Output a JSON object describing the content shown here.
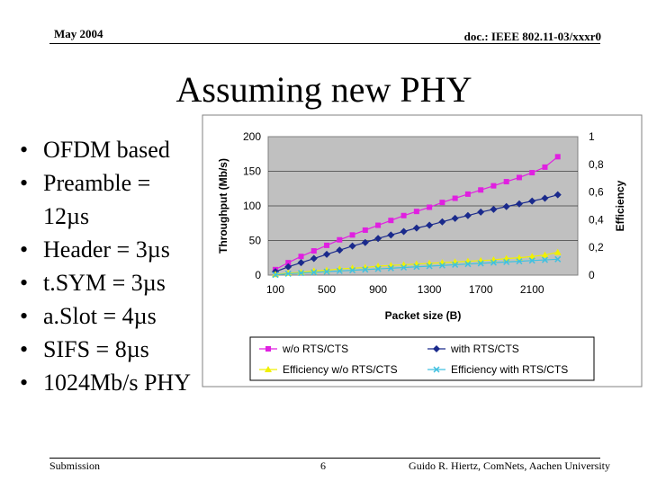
{
  "header": {
    "date": "May 2004",
    "doc": "doc.: IEEE 802.11-03/xxxr0"
  },
  "title": "Assuming new PHY",
  "bullets": [
    {
      "line1": "OFDM based",
      "line2": ""
    },
    {
      "line1": "Preamble =",
      "line2": "12µs"
    },
    {
      "line1": "Header = 3µs",
      "line2": ""
    },
    {
      "line1": "t.SYM = 3µs",
      "line2": ""
    },
    {
      "line1": "a.Slot = 4µs",
      "line2": ""
    },
    {
      "line1": "SIFS = 8µs",
      "line2": ""
    },
    {
      "line1": "1024Mb/s PHY",
      "line2": ""
    }
  ],
  "footer": {
    "left": "Submission",
    "page": "6",
    "right": "Guido R. Hiertz, ComNets, Aachen University"
  },
  "chart_data": {
    "type": "line",
    "xlabel": "Packet size (B)",
    "ylabel": "Throughput (Mb/s)",
    "y2label": "Efficiency",
    "xlim": [
      100,
      2400
    ],
    "ylim": [
      0,
      200
    ],
    "y2lim": [
      0,
      1
    ],
    "xticks": [
      "100",
      "500",
      "900",
      "1300",
      "1700",
      "2100"
    ],
    "xtick_values": [
      100,
      500,
      900,
      1300,
      1700,
      2100
    ],
    "yticks": [
      "0",
      "50",
      "100",
      "150",
      "200"
    ],
    "ytick_values": [
      0,
      50,
      100,
      150,
      200
    ],
    "y2ticks": [
      "0",
      "0,2",
      "0,4",
      "0,6",
      "0,8",
      "1"
    ],
    "y2tick_values": [
      0,
      0.2,
      0.4,
      0.6,
      0.8,
      1.0
    ],
    "x": [
      100,
      200,
      300,
      400,
      500,
      600,
      700,
      800,
      900,
      1000,
      1100,
      1200,
      1300,
      1400,
      1500,
      1600,
      1700,
      1800,
      1900,
      2000,
      2100,
      2200,
      2300
    ],
    "series": [
      {
        "name": "w/o RTS/CTS",
        "axis": "left",
        "color": "#e020e0",
        "marker": "square",
        "values": [
          8,
          18,
          27,
          35,
          43,
          51,
          58,
          65,
          72,
          79,
          86,
          92,
          98,
          105,
          111,
          117,
          123,
          129,
          135,
          141,
          148,
          156,
          171
        ]
      },
      {
        "name": "with RTS/CTS",
        "axis": "left",
        "color": "#1a2a8c",
        "marker": "diamond",
        "values": [
          5,
          12,
          18,
          24,
          30,
          36,
          42,
          47,
          53,
          58,
          63,
          68,
          72,
          77,
          82,
          86,
          91,
          95,
          99,
          103,
          107,
          111,
          116
        ]
      },
      {
        "name": "Efficiency w/o RTS/CTS",
        "axis": "right",
        "color": "#f0f000",
        "marker": "triangle",
        "values": [
          0.005,
          0.015,
          0.02,
          0.03,
          0.035,
          0.045,
          0.05,
          0.055,
          0.065,
          0.07,
          0.075,
          0.08,
          0.085,
          0.09,
          0.095,
          0.1,
          0.105,
          0.11,
          0.12,
          0.125,
          0.135,
          0.145,
          0.165
        ]
      },
      {
        "name": "Efficiency with RTS/CTS",
        "axis": "right",
        "color": "#40c0e0",
        "marker": "x",
        "values": [
          0.002,
          0.01,
          0.015,
          0.02,
          0.025,
          0.03,
          0.035,
          0.04,
          0.045,
          0.05,
          0.055,
          0.06,
          0.065,
          0.07,
          0.075,
          0.08,
          0.085,
          0.09,
          0.095,
          0.1,
          0.105,
          0.11,
          0.115
        ]
      }
    ],
    "legend_position": "bottom"
  }
}
